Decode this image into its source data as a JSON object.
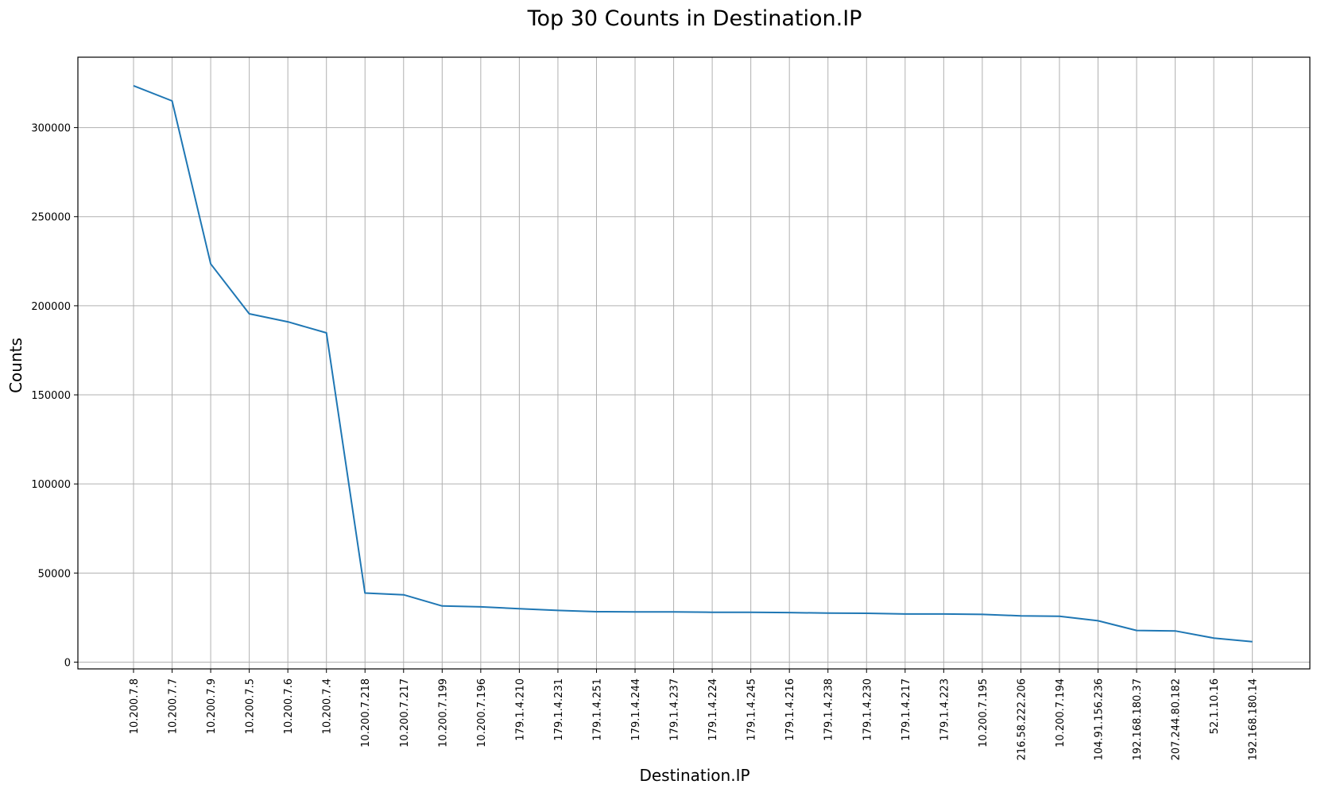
{
  "chart_data": {
    "type": "line",
    "title": "Top 30 Counts in Destination.IP",
    "xlabel": "Destination.IP",
    "ylabel": "Counts",
    "categories": [
      "10.200.7.8",
      "10.200.7.7",
      "10.200.7.9",
      "10.200.7.5",
      "10.200.7.6",
      "10.200.7.4",
      "10.200.7.218",
      "10.200.7.217",
      "10.200.7.199",
      "10.200.7.196",
      "179.1.4.210",
      "179.1.4.231",
      "179.1.4.251",
      "179.1.4.244",
      "179.1.4.237",
      "179.1.4.224",
      "179.1.4.245",
      "179.1.4.216",
      "179.1.4.238",
      "179.1.4.230",
      "179.1.4.217",
      "179.1.4.223",
      "10.200.7.195",
      "216.58.222.206",
      "10.200.7.194",
      "104.91.156.236",
      "192.168.180.37",
      "207.244.80.182",
      "52.1.10.16",
      "192.168.180.14"
    ],
    "values": [
      323500,
      315000,
      223500,
      195500,
      191000,
      184800,
      38800,
      37800,
      31500,
      31000,
      30000,
      29000,
      28300,
      28200,
      28200,
      28000,
      28000,
      27800,
      27500,
      27400,
      27000,
      27000,
      26800,
      26000,
      25700,
      23200,
      17800,
      17500,
      13500,
      11500
    ],
    "ylim": [
      -3800,
      339500
    ],
    "yticks": [
      0,
      50000,
      100000,
      150000,
      200000,
      250000,
      300000
    ],
    "ytick_labels": [
      "0",
      "50000",
      "100000",
      "150000",
      "200000",
      "250000",
      "300000"
    ],
    "grid": true,
    "line_color": "#1f77b4"
  }
}
